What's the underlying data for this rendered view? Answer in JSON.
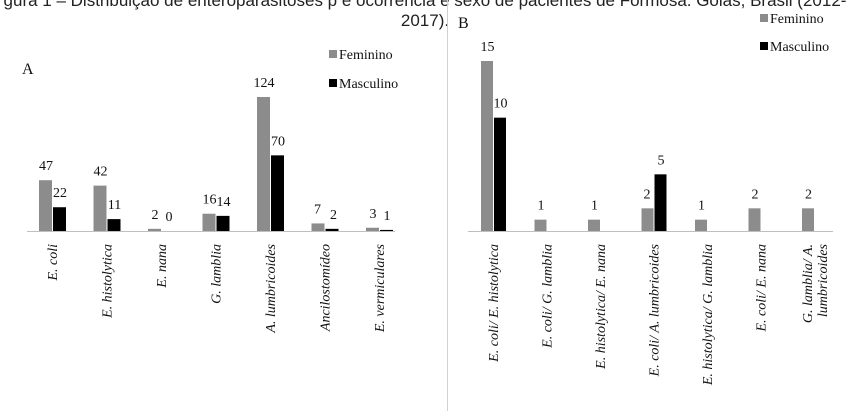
{
  "header": {
    "caption": "gura 1 – Distribuição de enteroparasitoses p e ocorrência e sexo de pacientes de Formosa. Goiás, Brasil (2012-2017)."
  },
  "colors": {
    "feminino": "#8c8c8c",
    "masculino": "#000000",
    "axis": "#bfbfbf"
  },
  "chart_data": [
    {
      "type": "bar",
      "panel_label": "A",
      "categories": [
        "E. coli",
        "E. histolytica",
        "E. nana",
        "G. lamblia",
        "A. lumbricoides",
        "Ancilostomídeo",
        "E. vermiculares"
      ],
      "series": [
        {
          "name": "Feminino",
          "values": [
            47,
            42,
            2,
            16,
            124,
            7,
            3
          ]
        },
        {
          "name": "Masculino",
          "values": [
            22,
            11,
            0,
            14,
            70,
            2,
            1
          ]
        }
      ],
      "ylim": [
        0,
        124
      ],
      "legend": "top-right",
      "grid": false
    },
    {
      "type": "bar",
      "panel_label": "B",
      "categories": [
        "E. coli/ E. histolytica",
        "E. coli/ G. lamblia",
        "E. histolytica/ E. nana",
        "E. coli/ A. lumbricoides",
        "E. histolytica/ G. lamblia",
        "E. coli/ E. nana",
        "G. lamblia/ A. lumbricoides"
      ],
      "series": [
        {
          "name": "Feminino",
          "values": [
            15,
            1,
            1,
            2,
            1,
            2,
            2
          ]
        },
        {
          "name": "Masculino",
          "values": [
            10,
            null,
            null,
            5,
            null,
            null,
            null
          ]
        }
      ],
      "ylim": [
        0,
        15
      ],
      "legend": "top-right",
      "grid": false
    }
  ]
}
